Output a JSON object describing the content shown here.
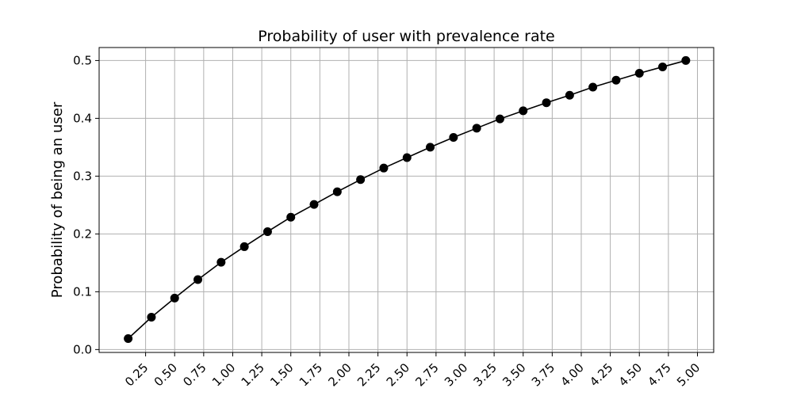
{
  "chart_data": {
    "type": "line",
    "title": "Probability of user with prevalence rate",
    "xlabel": "",
    "ylabel": "Probability of being an user",
    "xlim": [
      -0.15,
      5.14
    ],
    "ylim": [
      -0.005,
      0.5225
    ],
    "xticks": [
      "0.25",
      "0.50",
      "0.75",
      "1.00",
      "1.25",
      "1.50",
      "1.75",
      "2.00",
      "2.25",
      "2.50",
      "2.75",
      "3.00",
      "3.25",
      "3.50",
      "3.75",
      "4.00",
      "4.25",
      "4.50",
      "4.75",
      "5.00"
    ],
    "yticks": [
      "0.0",
      "0.1",
      "0.2",
      "0.3",
      "0.4",
      "0.5"
    ],
    "grid": true,
    "line_color": "#000000",
    "series": [
      {
        "x": [
          0.1,
          0.3,
          0.5,
          0.7,
          0.9,
          1.1,
          1.3,
          1.5,
          1.7,
          1.9,
          2.1,
          2.3,
          2.5,
          2.7,
          2.9,
          3.1,
          3.3,
          3.5,
          3.7,
          3.9,
          4.1,
          4.3,
          4.5,
          4.7,
          4.9
        ],
        "y": [
          0.019,
          0.056,
          0.089,
          0.121,
          0.151,
          0.178,
          0.204,
          0.229,
          0.251,
          0.273,
          0.294,
          0.314,
          0.332,
          0.35,
          0.367,
          0.383,
          0.399,
          0.413,
          0.427,
          0.44,
          0.454,
          0.466,
          0.478,
          0.489,
          0.5
        ]
      }
    ]
  }
}
